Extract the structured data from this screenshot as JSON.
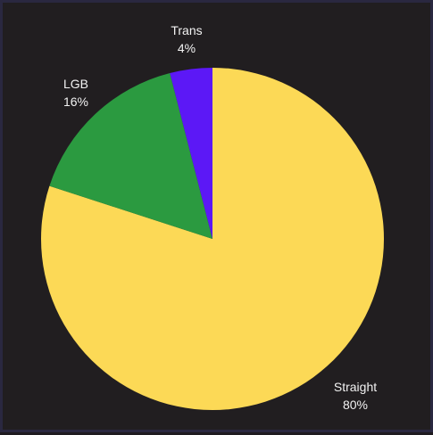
{
  "chart_data": {
    "type": "pie",
    "title": "",
    "slices": [
      {
        "label": "Straight",
        "value": 80,
        "value_label": "80%",
        "color": "#fcd956"
      },
      {
        "label": "LGB",
        "value": 16,
        "value_label": "16%",
        "color": "#2b9a40"
      },
      {
        "label": "Trans",
        "value": 4,
        "value_label": "4%",
        "color": "#5c18f6"
      }
    ],
    "start_angle": "12 o'clock",
    "direction": "clockwise"
  }
}
